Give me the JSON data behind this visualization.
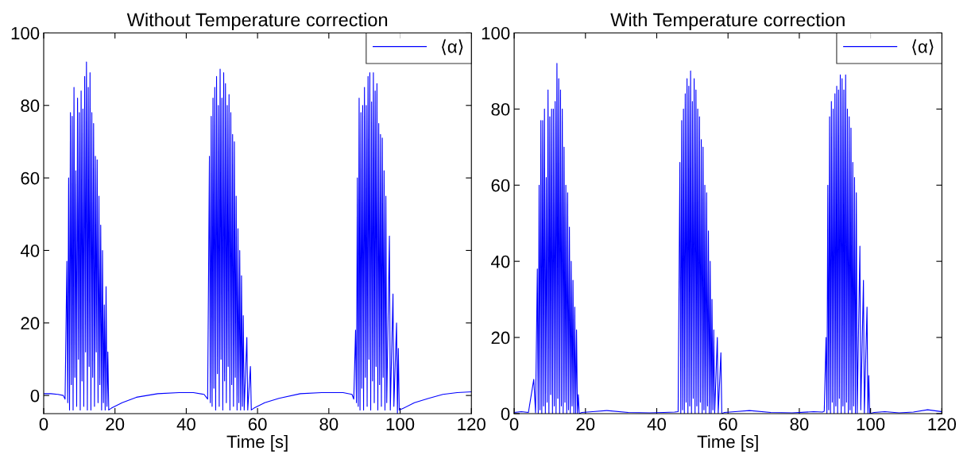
{
  "chart_data": [
    {
      "type": "line",
      "title": "Without Temperature correction",
      "xlabel": "Time [s]",
      "xlim": [
        0,
        120
      ],
      "xticks": [
        0,
        20,
        40,
        60,
        80,
        100,
        120
      ],
      "ylim": [
        -5,
        100
      ],
      "yticks": [
        0,
        20,
        40,
        60,
        80,
        100
      ],
      "grid": false,
      "legend": "top right",
      "series": [
        {
          "name": "⟨α⟩",
          "color": "#0000ff",
          "x": [
            0,
            2,
            4,
            5.5,
            6,
            6.5,
            6.75,
            7,
            7.25,
            7.5,
            7.75,
            8,
            8.25,
            8.5,
            8.75,
            9,
            9.25,
            9.5,
            9.75,
            10,
            10.25,
            10.5,
            10.75,
            11,
            11.25,
            11.5,
            11.75,
            12,
            12.25,
            12.5,
            12.75,
            13,
            13.25,
            13.5,
            13.75,
            14,
            14.25,
            14.5,
            14.75,
            15,
            15.25,
            15.5,
            15.75,
            16,
            16.25,
            16.5,
            16.75,
            17,
            17.25,
            17.5,
            17.75,
            18,
            18.25,
            19,
            22,
            26,
            32,
            38,
            42,
            45,
            46,
            46.5,
            46.75,
            47,
            47.25,
            47.5,
            47.75,
            48,
            48.25,
            48.5,
            48.75,
            49,
            49.25,
            49.5,
            49.75,
            50,
            50.25,
            50.5,
            50.75,
            51,
            51.25,
            51.5,
            51.75,
            52,
            52.25,
            52.5,
            52.75,
            53,
            53.25,
            53.5,
            53.75,
            54,
            54.25,
            54.5,
            54.75,
            55,
            55.25,
            55.5,
            55.75,
            56,
            56.25,
            57,
            57.25,
            58,
            58.25,
            59,
            62,
            66,
            72,
            78,
            84,
            86.5,
            87,
            87.5,
            87.75,
            88,
            88.25,
            88.5,
            88.75,
            89,
            89.25,
            89.5,
            89.75,
            90,
            90.25,
            90.5,
            90.75,
            91,
            91.25,
            91.5,
            91.75,
            92,
            92.25,
            92.5,
            92.75,
            93,
            93.25,
            93.5,
            93.75,
            94,
            94.25,
            94.5,
            94.75,
            95,
            95.25,
            95.5,
            95.75,
            96,
            96.25,
            97,
            97.25,
            98,
            98.25,
            99,
            99.25,
            99.5,
            99.75,
            101,
            104,
            108,
            112,
            116,
            120
          ],
          "values": [
            0.5,
            0.5,
            0.3,
            0,
            -1,
            37,
            -2,
            60,
            -4,
            78,
            3,
            77,
            -4,
            85,
            5,
            62,
            -3,
            82,
            10,
            78,
            -4,
            84,
            4,
            79,
            -3,
            88,
            12,
            92,
            -4,
            85,
            8,
            89,
            -4,
            78,
            5,
            75,
            -3,
            66,
            12,
            65,
            -2,
            55,
            3,
            47,
            -4,
            40,
            -2,
            25,
            -4,
            30,
            -3,
            12,
            -4,
            -3.5,
            -2,
            -0.5,
            0.5,
            0.8,
            0.8,
            0.3,
            -1,
            66,
            -2,
            77,
            -3,
            82,
            2,
            85,
            -4,
            88,
            6,
            80,
            -3,
            90,
            10,
            82,
            -4,
            89,
            4,
            86,
            -2,
            80,
            8,
            83,
            -4,
            78,
            3,
            72,
            -3,
            70,
            5,
            55,
            -4,
            46,
            -2,
            40,
            -4,
            33,
            -3,
            22,
            -4,
            16,
            -4,
            8,
            -4,
            -3.5,
            -2,
            -0.8,
            0.5,
            0.8,
            0.8,
            0.3,
            -1,
            18,
            -2,
            60,
            -3,
            82,
            -4,
            78,
            2,
            80,
            -4,
            85,
            5,
            80,
            -3,
            88,
            10,
            89,
            -4,
            81,
            4,
            89,
            -2,
            84,
            8,
            86,
            -4,
            75,
            3,
            72,
            -3,
            71,
            5,
            62,
            -4,
            55,
            -2,
            44,
            -4,
            28,
            -3,
            20,
            -5,
            13,
            -4,
            -3.5,
            -2,
            -0.8,
            0.3,
            0.8,
            1
          ]
        }
      ]
    },
    {
      "type": "line",
      "title": "With Temperature correction",
      "xlabel": "Time [s]",
      "xlim": [
        0,
        120
      ],
      "xticks": [
        0,
        20,
        40,
        60,
        80,
        100,
        120
      ],
      "ylim": [
        0,
        100
      ],
      "yticks": [
        0,
        20,
        40,
        60,
        80,
        100
      ],
      "grid": false,
      "legend": "top right",
      "series": [
        {
          "name": "⟨α⟩",
          "color": "#0000ff",
          "x": [
            0,
            2,
            4,
            5.5,
            6,
            6.5,
            6.75,
            7,
            7.25,
            7.5,
            7.75,
            8,
            8.25,
            8.5,
            8.75,
            9,
            9.25,
            9.5,
            9.75,
            10,
            10.25,
            10.5,
            10.75,
            11,
            11.25,
            11.5,
            11.75,
            12,
            12.25,
            12.5,
            12.75,
            13,
            13.25,
            13.5,
            13.75,
            14,
            14.25,
            14.5,
            14.75,
            15,
            15.25,
            15.5,
            15.75,
            16,
            16.25,
            16.5,
            16.75,
            17,
            17.25,
            17.5,
            17.75,
            18,
            18.25,
            19,
            22,
            26,
            32,
            38,
            42,
            45,
            46,
            46.5,
            46.75,
            47,
            47.25,
            47.5,
            47.75,
            48,
            48.25,
            48.5,
            48.75,
            49,
            49.25,
            49.5,
            49.75,
            50,
            50.25,
            50.5,
            50.75,
            51,
            51.25,
            51.5,
            51.75,
            52,
            52.25,
            52.5,
            52.75,
            53,
            53.25,
            53.5,
            53.75,
            54,
            54.25,
            54.5,
            54.75,
            55,
            55.25,
            55.5,
            55.75,
            56,
            56.25,
            57,
            57.25,
            58,
            58.25,
            59,
            62,
            66,
            72,
            78,
            84,
            86.5,
            87,
            87.5,
            87.75,
            88,
            88.25,
            88.5,
            88.75,
            89,
            89.25,
            89.5,
            89.75,
            90,
            90.25,
            90.5,
            90.75,
            91,
            91.25,
            91.5,
            91.75,
            92,
            92.25,
            92.5,
            92.75,
            93,
            93.25,
            93.5,
            93.75,
            94,
            94.25,
            94.5,
            94.75,
            95,
            95.25,
            95.5,
            95.75,
            96,
            96.25,
            97,
            97.25,
            98,
            98.25,
            99,
            99.25,
            99.5,
            99.75,
            101,
            104,
            108,
            112,
            116,
            120
          ],
          "values": [
            0.3,
            0.5,
            0.3,
            9,
            0.2,
            38,
            0,
            60,
            1,
            77,
            0,
            77,
            2,
            80,
            0,
            62,
            3,
            85,
            0,
            78,
            5,
            80,
            0,
            80,
            2,
            82,
            0,
            92,
            4,
            88,
            0,
            85,
            2,
            80,
            0,
            70,
            3,
            60,
            0,
            58,
            1,
            49,
            0,
            40,
            2,
            35,
            0,
            28,
            0,
            22,
            0,
            5,
            0,
            0.3,
            0.5,
            0.8,
            0.3,
            0.2,
            0.3,
            0.4,
            0.5,
            66,
            0,
            77,
            1,
            80,
            0,
            84,
            3,
            88,
            0,
            86,
            2,
            90,
            0,
            82,
            4,
            88,
            0,
            85,
            2,
            80,
            0,
            78,
            3,
            72,
            0,
            70,
            1,
            60,
            0,
            58,
            2,
            48,
            0,
            40,
            0,
            30,
            1,
            22,
            0,
            20,
            0,
            16,
            0,
            0.3,
            0.5,
            0.8,
            0.3,
            0.2,
            0.5,
            0.4,
            0.6,
            20,
            0,
            60,
            1,
            78,
            0,
            82,
            3,
            80,
            0,
            84,
            2,
            86,
            0,
            85,
            4,
            89,
            0,
            88,
            2,
            85,
            0,
            89,
            3,
            80,
            0,
            78,
            1,
            75,
            0,
            66,
            2,
            62,
            0,
            58,
            0,
            44,
            1,
            35,
            0,
            28,
            0,
            10,
            0,
            0.3,
            0.5,
            0.2,
            0.4,
            1,
            0.5
          ]
        }
      ]
    }
  ]
}
